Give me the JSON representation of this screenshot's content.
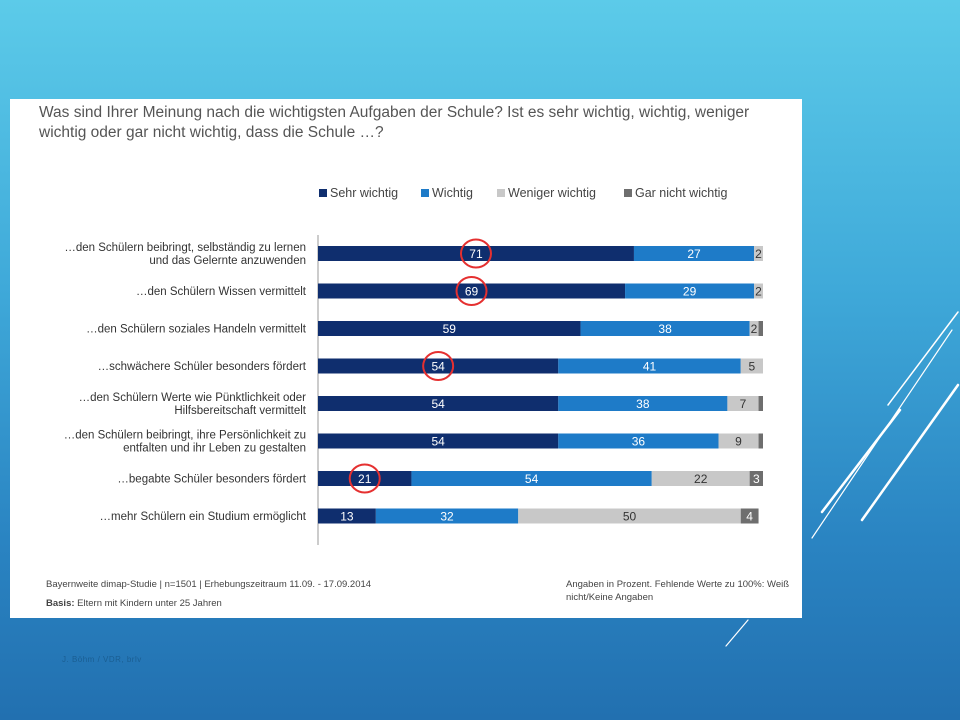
{
  "slide": {
    "credit": "J. Böhm / VDR, brlv"
  },
  "chart_data": {
    "type": "bar",
    "orientation": "horizontal",
    "stacked": true,
    "title": "Was sind Ihrer Meinung nach die wichtigsten Aufgaben der Schule? Ist es sehr wichtig, wichtig, weniger wichtig oder gar nicht wichtig, dass die Schule …?",
    "legend_position": "top-right",
    "categories": [
      [
        "…den Schülern beibringt, selbständig zu lernen",
        "und das Gelernte anzuwenden"
      ],
      [
        "…den Schülern Wissen vermittelt"
      ],
      [
        "…den Schülern soziales Handeln vermittelt"
      ],
      [
        "…schwächere Schüler besonders fördert"
      ],
      [
        "…den Schülern Werte wie Pünktlichkeit oder",
        "Hilfsbereitschaft vermittelt"
      ],
      [
        "…den Schülern beibringt, ihre Persönlichkeit zu",
        "entfalten und ihr Leben zu gestalten"
      ],
      [
        "…begabte Schüler besonders fördert"
      ],
      [
        "…mehr Schülern ein Studium ermöglicht"
      ]
    ],
    "series": [
      {
        "name": "Sehr wichtig",
        "color": "#0f2e6e",
        "values": [
          71,
          69,
          59,
          54,
          54,
          54,
          21,
          13
        ]
      },
      {
        "name": "Wichtig",
        "color": "#1e7bc8",
        "values": [
          27,
          29,
          38,
          41,
          38,
          36,
          54,
          32
        ]
      },
      {
        "name": "Weniger wichtig",
        "color": "#c8c8c8",
        "values": [
          2,
          2,
          2,
          5,
          7,
          9,
          22,
          50
        ]
      },
      {
        "name": "Gar nicht wichtig",
        "color": "#6e6e6e",
        "values": [
          0,
          0,
          1,
          0,
          1,
          1,
          3,
          4
        ]
      }
    ],
    "value_labels": [
      [
        "71",
        "27",
        "2",
        ""
      ],
      [
        "69",
        "29",
        "2",
        ""
      ],
      [
        "59",
        "38",
        "2",
        ""
      ],
      [
        "54",
        "41",
        "5",
        ""
      ],
      [
        "54",
        "38",
        "7",
        ""
      ],
      [
        "54",
        "36",
        "9",
        ""
      ],
      [
        "21",
        "54",
        "22",
        "3"
      ],
      [
        "13",
        "32",
        "50",
        "4"
      ]
    ],
    "highlighted_values": [
      {
        "row": 0,
        "series": 0
      },
      {
        "row": 1,
        "series": 0
      },
      {
        "row": 3,
        "series": 0
      },
      {
        "row": 6,
        "series": 0
      }
    ],
    "highlight_color": "#e53030",
    "xlim": [
      0,
      100
    ],
    "footer": {
      "source": "Bayernweite dimap-Studie | n=1501 | Erhebungszeitraum 11.09. - 17.09.2014",
      "basis_label": "Basis:",
      "basis_text": " Eltern mit Kindern unter 25 Jahren",
      "note": "Angaben in Prozent. Fehlende Werte zu 100%: Weiß nicht/Keine Angaben"
    }
  }
}
